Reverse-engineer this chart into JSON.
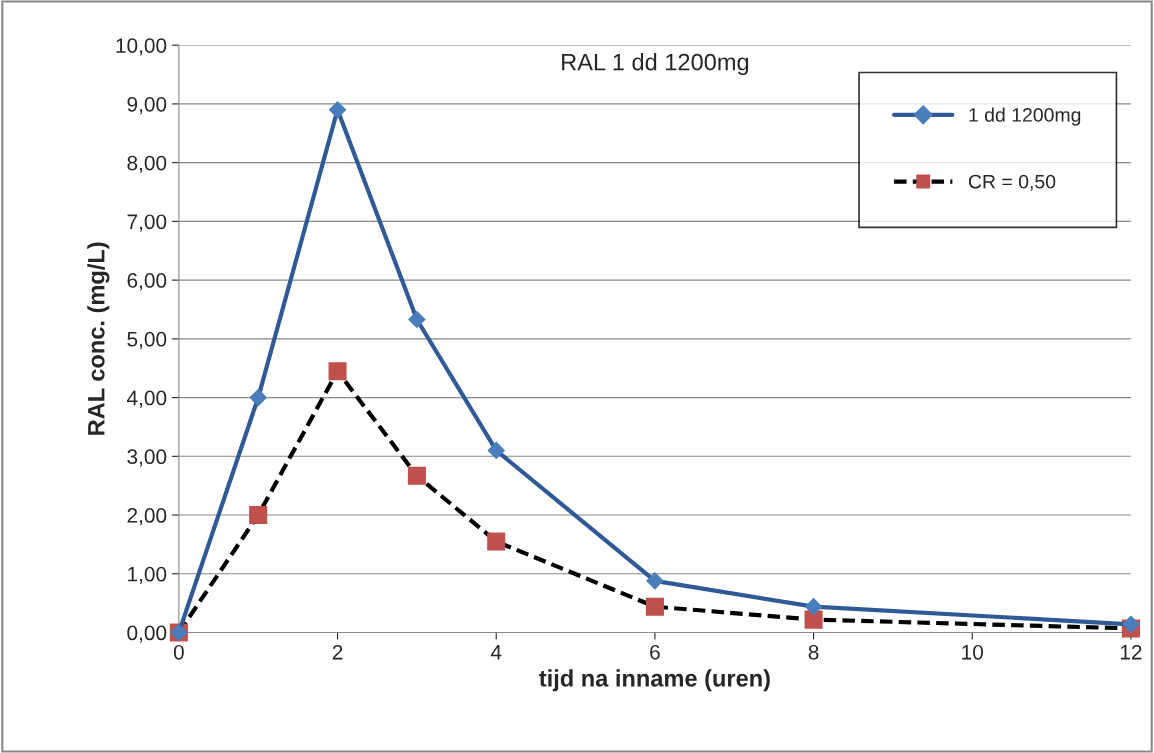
{
  "chart_data": {
    "type": "line",
    "title": "RAL 1 dd 1200mg",
    "xlabel": "tijd na inname (uren)",
    "ylabel": "RAL conc. (mg/L)",
    "x": [
      0,
      1,
      2,
      3,
      4,
      6,
      8,
      12
    ],
    "series": [
      {
        "name": "1 dd 1200mg",
        "color": "#2f5a96",
        "colors": [
          "#4a7ebb",
          "#4a7ebb",
          "#4a7ebb",
          "#4a7ebb",
          "#4a7ebb",
          "#4a7ebb",
          "#4a7ebb",
          "#4a7ebb"
        ],
        "marker": "diamond",
        "line_style": "solid",
        "values": [
          0,
          4.0,
          8.9,
          5.33,
          3.1,
          0.88,
          0.44,
          0.14
        ]
      },
      {
        "name": "CR = 0,50",
        "color": "#000000",
        "colors": [
          "#c0504d",
          "#c0504d",
          "#c0504d",
          "#c0504d",
          "#c0504d",
          "#c0504d",
          "#c0504d",
          "#c0504d"
        ],
        "marker": "square",
        "line_style": "dashed",
        "values": [
          0,
          2.0,
          4.45,
          2.67,
          1.55,
          0.44,
          0.22,
          0.07
        ]
      }
    ],
    "xlim": [
      0,
      12
    ],
    "xticks": [
      0,
      2,
      4,
      6,
      8,
      10,
      12
    ],
    "ylim": [
      0,
      10
    ],
    "yticks": [
      {
        "value": 0,
        "label": "0,00"
      },
      {
        "value": 1,
        "label": "1,00"
      },
      {
        "value": 2,
        "label": "2,00"
      },
      {
        "value": 3,
        "label": "3,00"
      },
      {
        "value": 4,
        "label": "4,00"
      },
      {
        "value": 5,
        "label": "5,00"
      },
      {
        "value": 6,
        "label": "6,00"
      },
      {
        "value": 7,
        "label": "7,00"
      },
      {
        "value": 8,
        "label": "8,00"
      },
      {
        "value": 9,
        "label": "9,00"
      },
      {
        "value": 10,
        "label": "10,00"
      }
    ],
    "grid": "y",
    "legend": "top right"
  }
}
